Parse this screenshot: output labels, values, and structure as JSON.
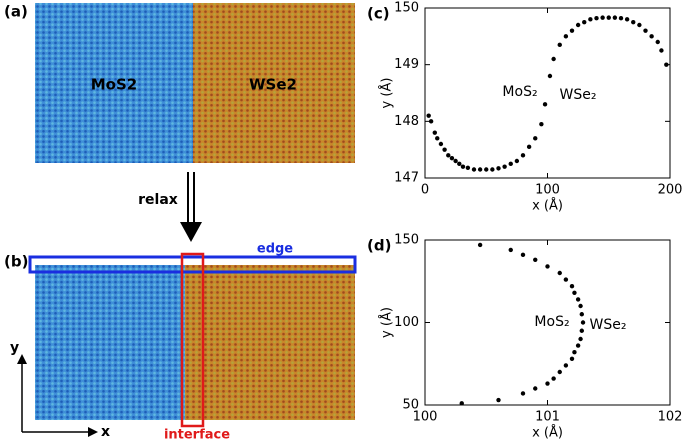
{
  "figure": {
    "panel_a": "(a)",
    "mos2_label": "MoS2",
    "wse2_label": "WSe2",
    "relax": "relax",
    "panel_b": "(b)",
    "edge": "edge",
    "interface": "interface",
    "axis_y": "y",
    "axis_x": "x"
  },
  "chart_data": [
    {
      "type": "scatter",
      "panel": "(c)",
      "x_label": "x (Å)",
      "y_label": "y (Å)",
      "annotations": [
        "MoS₂",
        "WSe₂"
      ],
      "color": "#000000",
      "x": [
        3,
        5,
        8,
        10,
        13,
        16,
        19,
        22,
        25,
        28,
        31,
        35,
        40,
        45,
        50,
        55,
        60,
        65,
        70,
        75,
        80,
        85,
        90,
        95,
        98,
        102,
        105,
        110,
        115,
        120,
        125,
        130,
        135,
        140,
        145,
        150,
        155,
        160,
        165,
        170,
        175,
        180,
        185,
        190,
        193,
        197
      ],
      "y": [
        148.1,
        148.0,
        147.8,
        147.7,
        147.6,
        147.5,
        147.4,
        147.35,
        147.3,
        147.25,
        147.2,
        147.18,
        147.15,
        147.15,
        147.15,
        147.15,
        147.17,
        147.2,
        147.25,
        147.3,
        147.4,
        147.55,
        147.7,
        147.95,
        148.3,
        148.8,
        149.1,
        149.35,
        149.5,
        149.6,
        149.7,
        149.75,
        149.8,
        149.82,
        149.83,
        149.83,
        149.83,
        149.82,
        149.8,
        149.75,
        149.7,
        149.6,
        149.5,
        149.4,
        149.25,
        149.0
      ],
      "xlim": [
        0,
        200
      ],
      "xticks": [
        0,
        100,
        200
      ],
      "ylim": [
        147,
        150
      ],
      "yticks": [
        147,
        148,
        149,
        150
      ]
    },
    {
      "type": "scatter",
      "panel": "(d)",
      "x_label": "x (Å)",
      "y_label": "y (Å)",
      "annotations": [
        "MoS₂",
        "WSe₂"
      ],
      "color": "#000000",
      "x": [
        100.3,
        100.6,
        100.8,
        100.9,
        101.0,
        101.05,
        101.1,
        101.15,
        101.2,
        101.22,
        101.25,
        101.27,
        101.28,
        101.29,
        101.28,
        101.27,
        101.25,
        101.22,
        101.2,
        101.15,
        101.1,
        101.0,
        100.9,
        100.8,
        100.7,
        100.45
      ],
      "y": [
        51,
        53,
        57,
        60,
        63,
        66,
        70,
        74,
        78,
        82,
        86,
        90,
        95,
        100,
        105,
        110,
        114,
        118,
        122,
        126,
        130,
        134,
        138,
        141,
        144,
        147
      ],
      "xlim": [
        100,
        102
      ],
      "xticks": [
        100,
        101,
        102
      ],
      "ylim": [
        50,
        150
      ],
      "yticks": [
        50,
        100,
        150
      ]
    }
  ]
}
